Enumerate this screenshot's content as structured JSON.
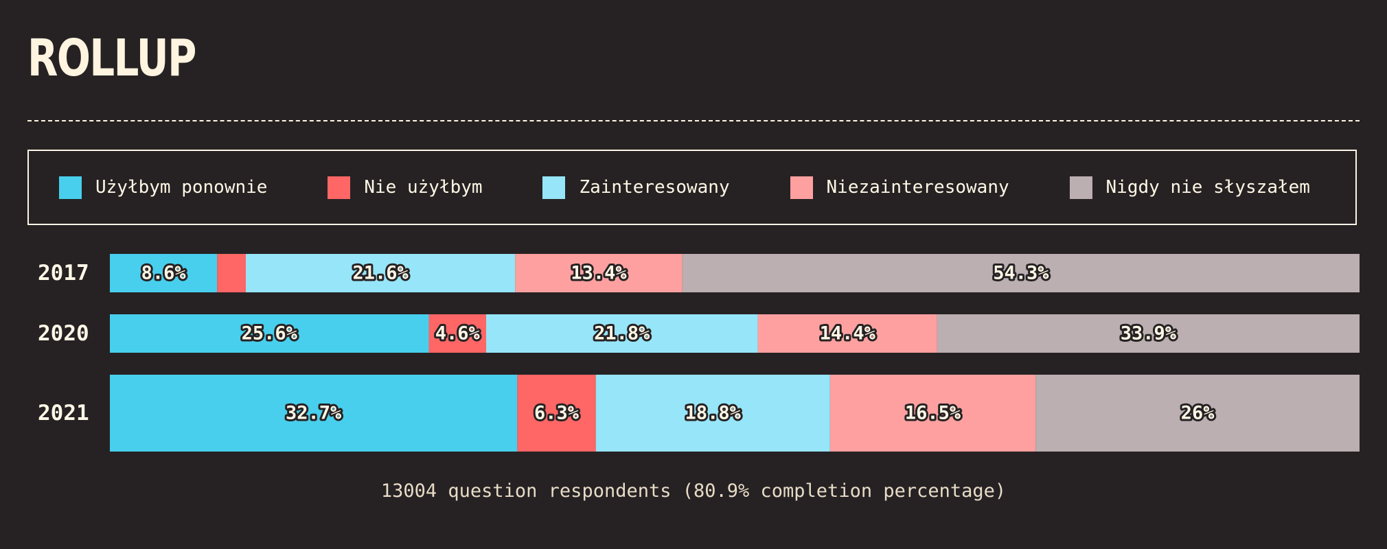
{
  "chart_data": {
    "type": "bar",
    "orientation": "horizontal",
    "stacked": true,
    "title": "ROLLUP",
    "categories": [
      "2017",
      "2020",
      "2021"
    ],
    "series": [
      {
        "name": "Użyłbym ponownie",
        "color": "#48cfed",
        "values": [
          8.6,
          25.6,
          32.7
        ],
        "labels": [
          "8.6%",
          "25.6%",
          "32.7%"
        ]
      },
      {
        "name": "Nie użyłbym",
        "color": "#ff6666",
        "values": [
          2.3,
          4.6,
          6.3
        ],
        "labels": [
          "",
          "4.6%",
          "6.3%"
        ]
      },
      {
        "name": "Zainteresowany",
        "color": "#96e5f8",
        "values": [
          21.6,
          21.8,
          18.8
        ],
        "labels": [
          "21.6%",
          "21.8%",
          "18.8%"
        ]
      },
      {
        "name": "Niezainteresowany",
        "color": "#ffa0a0",
        "values": [
          13.4,
          14.4,
          16.5
        ],
        "labels": [
          "13.4%",
          "14.4%",
          "16.5%"
        ]
      },
      {
        "name": "Nigdy nie słyszałem",
        "color": "#bbafb2",
        "values": [
          54.3,
          33.9,
          26
        ],
        "labels": [
          "54.3%",
          "33.9%",
          "26%"
        ]
      }
    ],
    "legend_position": "top",
    "footnote": "13004 question respondents (80.9% completion percentage)"
  }
}
